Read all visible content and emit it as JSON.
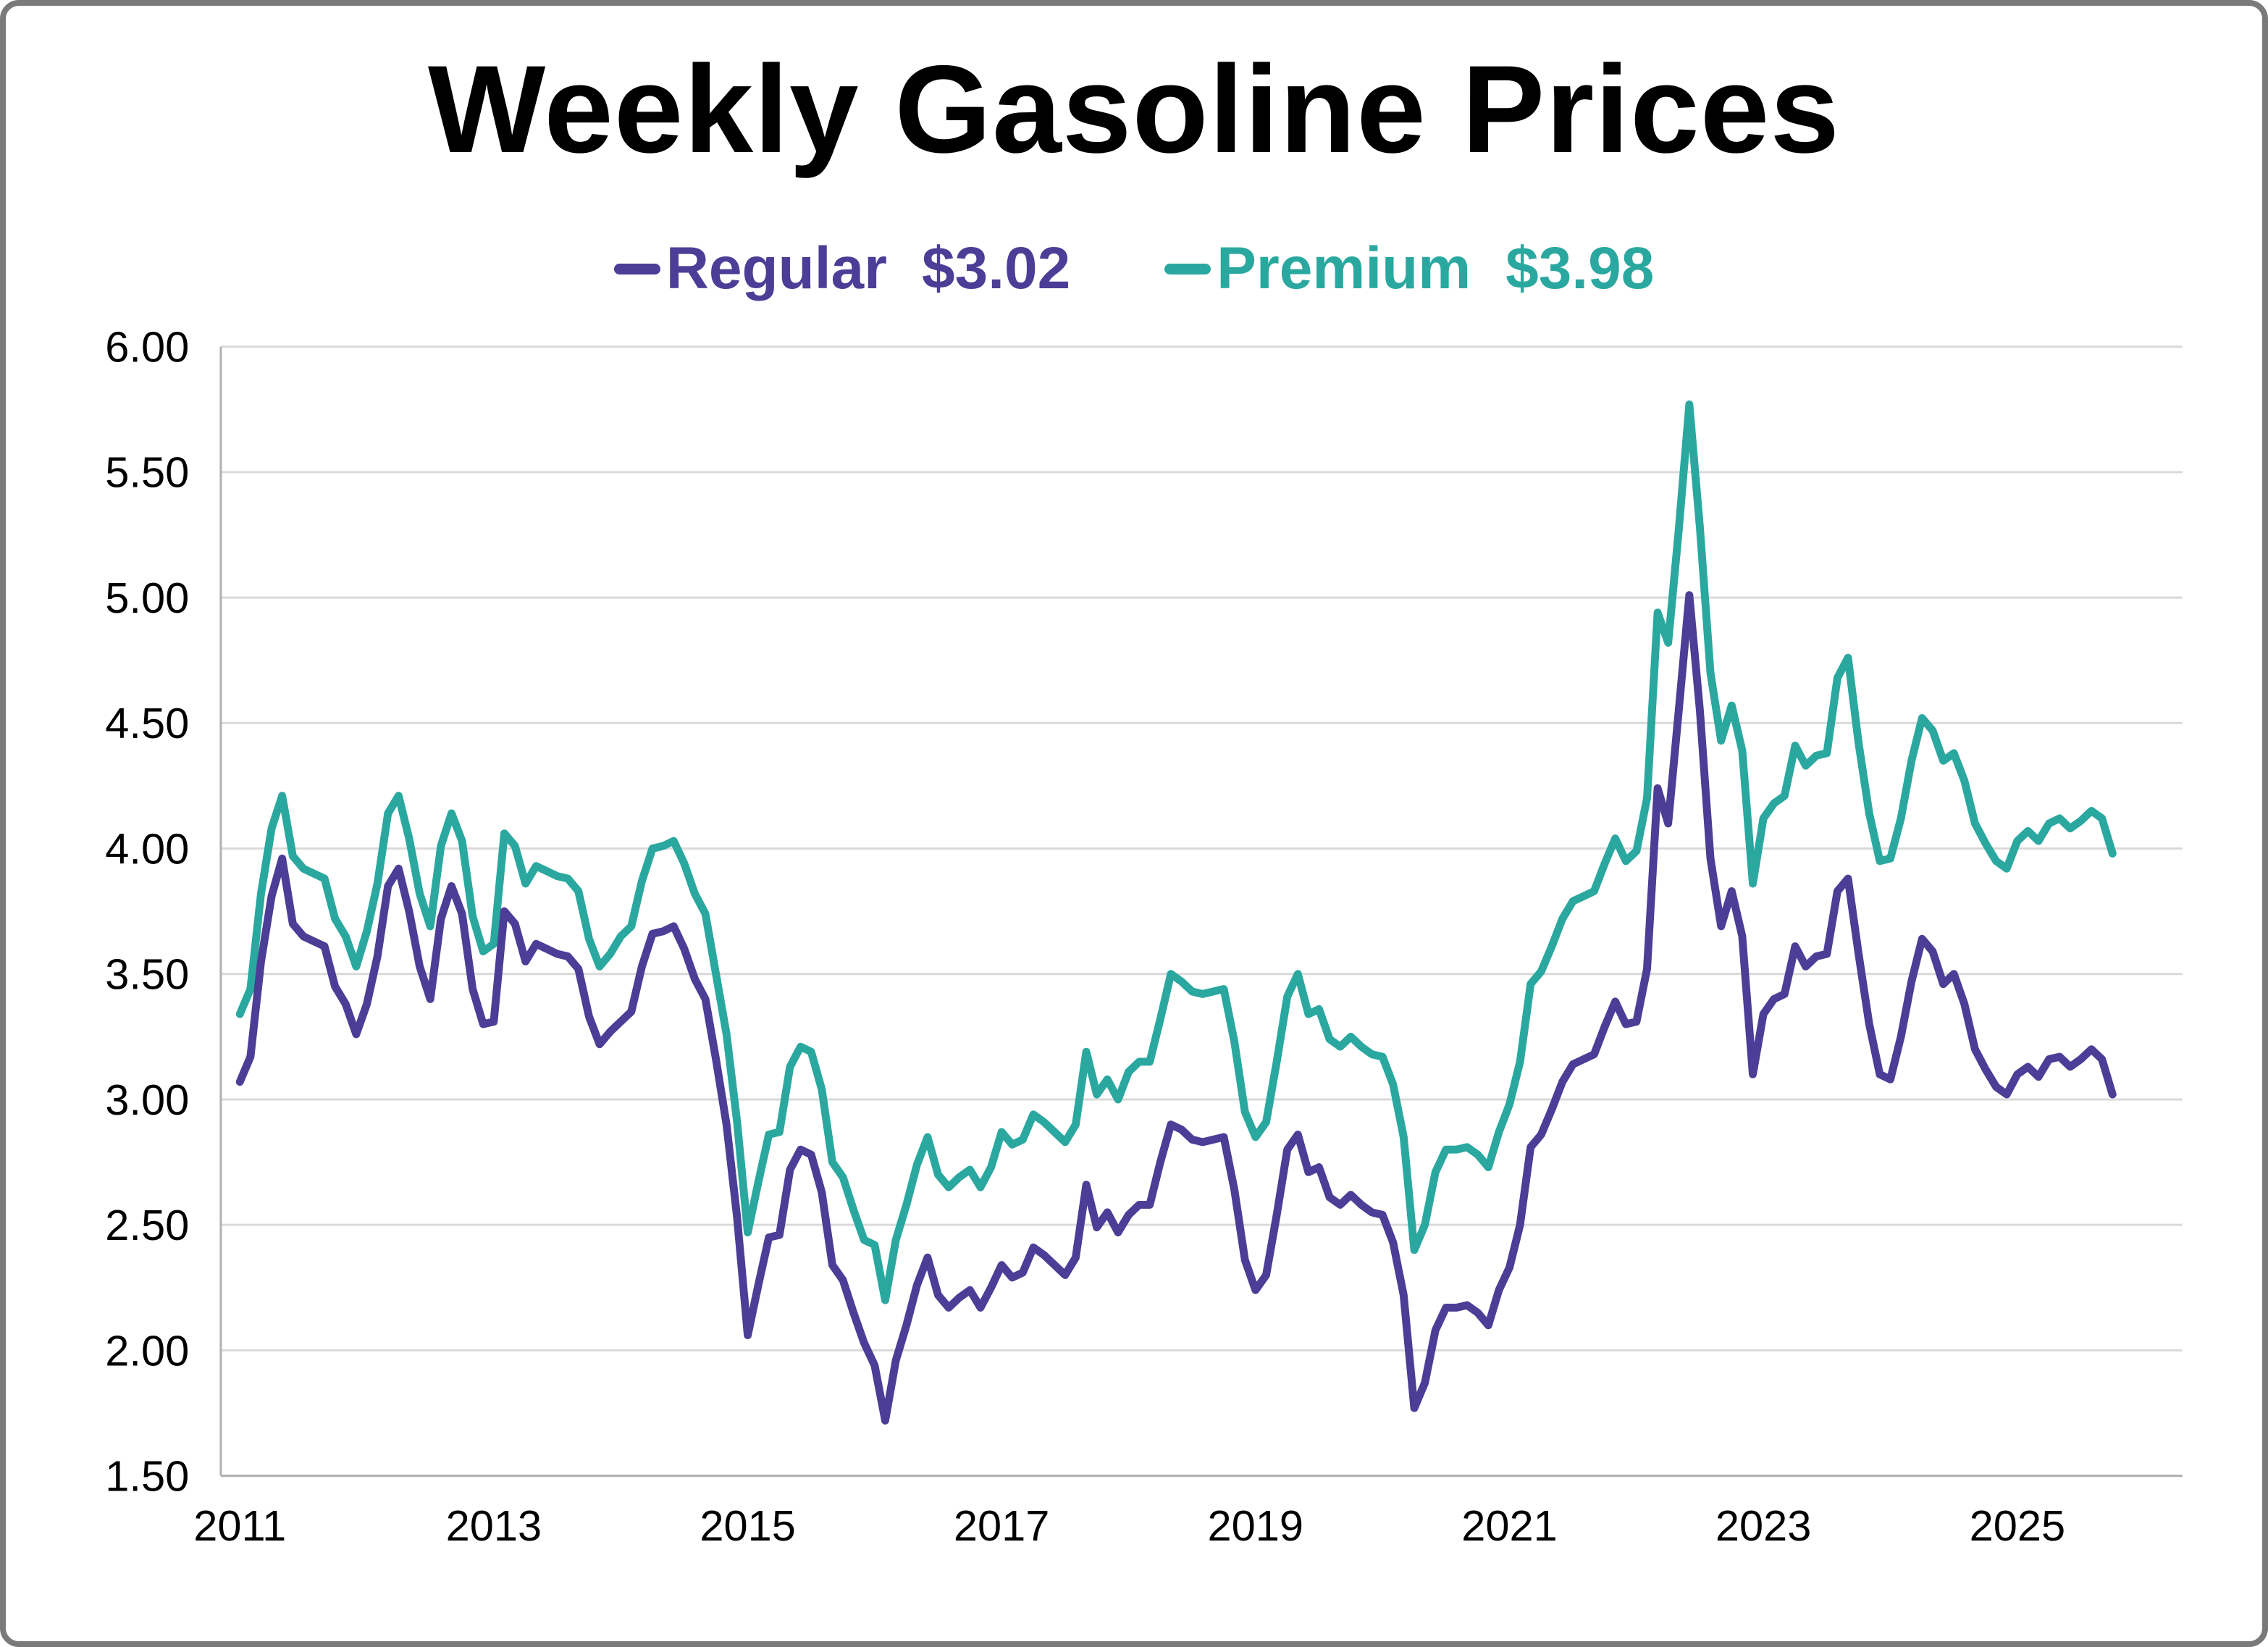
{
  "chart_data": {
    "type": "line",
    "title": "Weekly Gasoline Prices",
    "xlabel": "",
    "ylabel": "",
    "x_unit": "year",
    "sampling": "monthly approximation of weekly series",
    "x_start": 2011.0,
    "x_step_years": 0.0833333,
    "xlim": [
      2010.85,
      2026.3
    ],
    "ylim": [
      1.5,
      6.0
    ],
    "grid": "horizontal",
    "grid_color": "#d9d9d9",
    "axis_color": "#b0b0b0",
    "plot_background": "#ffffff",
    "y_ticks": [
      {
        "value": 1.5,
        "label": "1.50"
      },
      {
        "value": 2.0,
        "label": "2.00"
      },
      {
        "value": 2.5,
        "label": "2.50"
      },
      {
        "value": 3.0,
        "label": "3.00"
      },
      {
        "value": 3.5,
        "label": "3.50"
      },
      {
        "value": 4.0,
        "label": "4.00"
      },
      {
        "value": 4.5,
        "label": "4.50"
      },
      {
        "value": 5.0,
        "label": "5.00"
      },
      {
        "value": 5.5,
        "label": "5.50"
      },
      {
        "value": 6.0,
        "label": "6.00"
      }
    ],
    "x_ticks": [
      {
        "value": 2011,
        "label": "2011"
      },
      {
        "value": 2013,
        "label": "2013"
      },
      {
        "value": 2015,
        "label": "2015"
      },
      {
        "value": 2017,
        "label": "2017"
      },
      {
        "value": 2019,
        "label": "2019"
      },
      {
        "value": 2021,
        "label": "2021"
      },
      {
        "value": 2023,
        "label": "2023"
      },
      {
        "value": 2025,
        "label": "2025"
      }
    ],
    "legend_position": "top-center",
    "series": [
      {
        "name": "Regular",
        "current_value": "$3.02",
        "color": "#4c3d96",
        "values": [
          3.07,
          3.17,
          3.55,
          3.81,
          3.96,
          3.7,
          3.65,
          3.63,
          3.61,
          3.45,
          3.38,
          3.26,
          3.38,
          3.57,
          3.85,
          3.92,
          3.75,
          3.53,
          3.4,
          3.72,
          3.85,
          3.74,
          3.44,
          3.3,
          3.31,
          3.75,
          3.7,
          3.55,
          3.62,
          3.6,
          3.58,
          3.57,
          3.52,
          3.33,
          3.22,
          3.27,
          3.31,
          3.35,
          3.53,
          3.66,
          3.67,
          3.69,
          3.6,
          3.48,
          3.4,
          3.16,
          2.9,
          2.53,
          2.06,
          2.26,
          2.45,
          2.46,
          2.72,
          2.8,
          2.78,
          2.63,
          2.34,
          2.28,
          2.15,
          2.03,
          1.94,
          1.72,
          1.96,
          2.1,
          2.26,
          2.37,
          2.22,
          2.17,
          2.21,
          2.24,
          2.17,
          2.25,
          2.34,
          2.29,
          2.31,
          2.41,
          2.38,
          2.34,
          2.3,
          2.37,
          2.66,
          2.49,
          2.55,
          2.47,
          2.54,
          2.58,
          2.58,
          2.75,
          2.9,
          2.88,
          2.84,
          2.83,
          2.84,
          2.85,
          2.64,
          2.36,
          2.24,
          2.3,
          2.54,
          2.8,
          2.86,
          2.71,
          2.73,
          2.61,
          2.58,
          2.62,
          2.58,
          2.55,
          2.54,
          2.43,
          2.22,
          1.77,
          1.87,
          2.08,
          2.17,
          2.17,
          2.18,
          2.15,
          2.1,
          2.24,
          2.33,
          2.5,
          2.81,
          2.86,
          2.96,
          3.07,
          3.14,
          3.16,
          3.18,
          3.29,
          3.39,
          3.3,
          3.31,
          3.52,
          4.24,
          4.1,
          4.55,
          5.01,
          4.55,
          3.96,
          3.69,
          3.83,
          3.65,
          3.1,
          3.34,
          3.4,
          3.42,
          3.61,
          3.53,
          3.57,
          3.58,
          3.83,
          3.88,
          3.58,
          3.3,
          3.1,
          3.08,
          3.25,
          3.47,
          3.64,
          3.59,
          3.46,
          3.5,
          3.38,
          3.2,
          3.12,
          3.05,
          3.02,
          3.1,
          3.13,
          3.09,
          3.16,
          3.17,
          3.13,
          3.16,
          3.2,
          3.16,
          3.02
        ]
      },
      {
        "name": "Premium",
        "current_value": "$3.98",
        "color": "#2aa8a0",
        "values": [
          3.34,
          3.44,
          3.82,
          4.08,
          4.21,
          3.97,
          3.92,
          3.9,
          3.88,
          3.72,
          3.65,
          3.53,
          3.67,
          3.86,
          4.14,
          4.21,
          4.04,
          3.82,
          3.69,
          4.01,
          4.14,
          4.03,
          3.73,
          3.59,
          3.62,
          4.06,
          4.01,
          3.86,
          3.93,
          3.91,
          3.89,
          3.88,
          3.83,
          3.64,
          3.53,
          3.58,
          3.65,
          3.69,
          3.87,
          4.0,
          4.01,
          4.03,
          3.94,
          3.82,
          3.74,
          3.5,
          3.26,
          2.91,
          2.47,
          2.67,
          2.86,
          2.87,
          3.13,
          3.21,
          3.19,
          3.04,
          2.75,
          2.69,
          2.56,
          2.44,
          2.42,
          2.2,
          2.44,
          2.58,
          2.74,
          2.85,
          2.7,
          2.65,
          2.69,
          2.72,
          2.65,
          2.73,
          2.87,
          2.82,
          2.84,
          2.94,
          2.91,
          2.87,
          2.83,
          2.9,
          3.19,
          3.02,
          3.08,
          3.0,
          3.11,
          3.15,
          3.15,
          3.32,
          3.5,
          3.47,
          3.43,
          3.42,
          3.43,
          3.44,
          3.23,
          2.95,
          2.85,
          2.91,
          3.15,
          3.41,
          3.5,
          3.34,
          3.36,
          3.24,
          3.21,
          3.25,
          3.21,
          3.18,
          3.17,
          3.06,
          2.85,
          2.4,
          2.5,
          2.71,
          2.8,
          2.8,
          2.81,
          2.78,
          2.73,
          2.87,
          2.98,
          3.15,
          3.46,
          3.51,
          3.61,
          3.72,
          3.79,
          3.81,
          3.83,
          3.94,
          4.04,
          3.95,
          3.99,
          4.2,
          4.94,
          4.82,
          5.27,
          5.77,
          5.28,
          4.7,
          4.43,
          4.57,
          4.39,
          3.86,
          4.12,
          4.18,
          4.21,
          4.41,
          4.33,
          4.37,
          4.38,
          4.68,
          4.76,
          4.42,
          4.14,
          3.95,
          3.96,
          4.12,
          4.35,
          4.52,
          4.47,
          4.35,
          4.38,
          4.27,
          4.1,
          4.02,
          3.95,
          3.92,
          4.03,
          4.07,
          4.03,
          4.1,
          4.12,
          4.08,
          4.11,
          4.15,
          4.12,
          3.98
        ]
      }
    ]
  }
}
